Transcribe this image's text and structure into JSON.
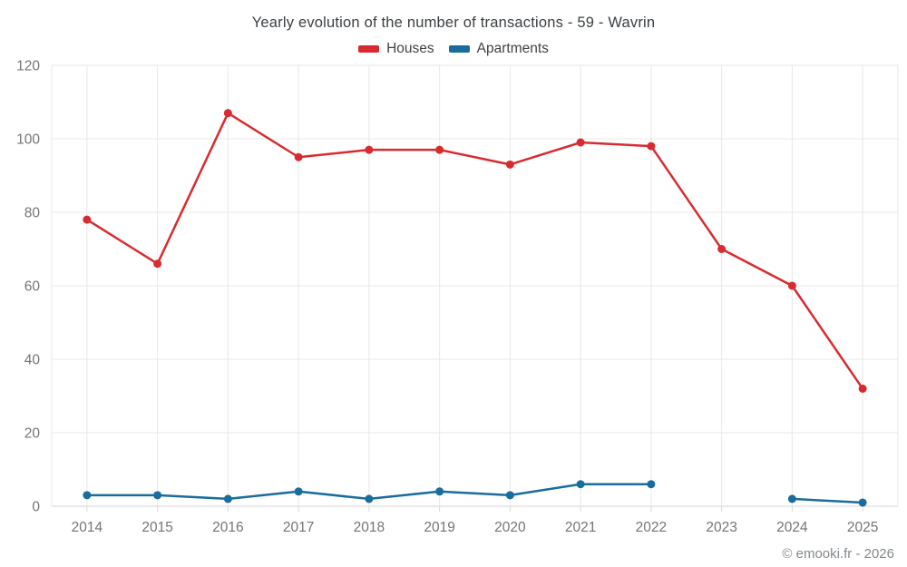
{
  "header": {
    "title": "Yearly evolution of the number of transactions - 59 - Wavrin"
  },
  "legend": {
    "position": "top",
    "items": [
      {
        "label": "Houses",
        "color": "#d92b2f"
      },
      {
        "label": "Apartments",
        "color": "#1a6c9d"
      }
    ]
  },
  "chart_data": {
    "type": "line",
    "title": "Yearly evolution of the number of transactions - 59 - Wavrin",
    "x": [
      2014,
      2015,
      2016,
      2017,
      2018,
      2019,
      2020,
      2021,
      2022,
      2023,
      2024,
      2025
    ],
    "series": [
      {
        "name": "Houses",
        "color": "#d92b2f",
        "values": [
          78,
          66,
          107,
          95,
          97,
          97,
          93,
          99,
          98,
          70,
          60,
          32
        ]
      },
      {
        "name": "Apartments",
        "color": "#1a6c9d",
        "values": [
          3,
          3,
          2,
          4,
          2,
          4,
          3,
          6,
          6,
          null,
          2,
          1
        ]
      }
    ],
    "xlabel": "",
    "ylabel": "",
    "ylim": [
      0,
      120
    ],
    "yticks": [
      0,
      20,
      40,
      60,
      80,
      100,
      120
    ],
    "grid": true,
    "legend_position": "top"
  },
  "footer": {
    "credit": "© emooki.fr - 2026"
  },
  "colors": {
    "background": "#ffffff",
    "grid": "#e8e8e8",
    "axis_line": "#d6d6d6",
    "tick": "#dadada",
    "axis_text": "#757575",
    "title_text": "#3c4043"
  }
}
